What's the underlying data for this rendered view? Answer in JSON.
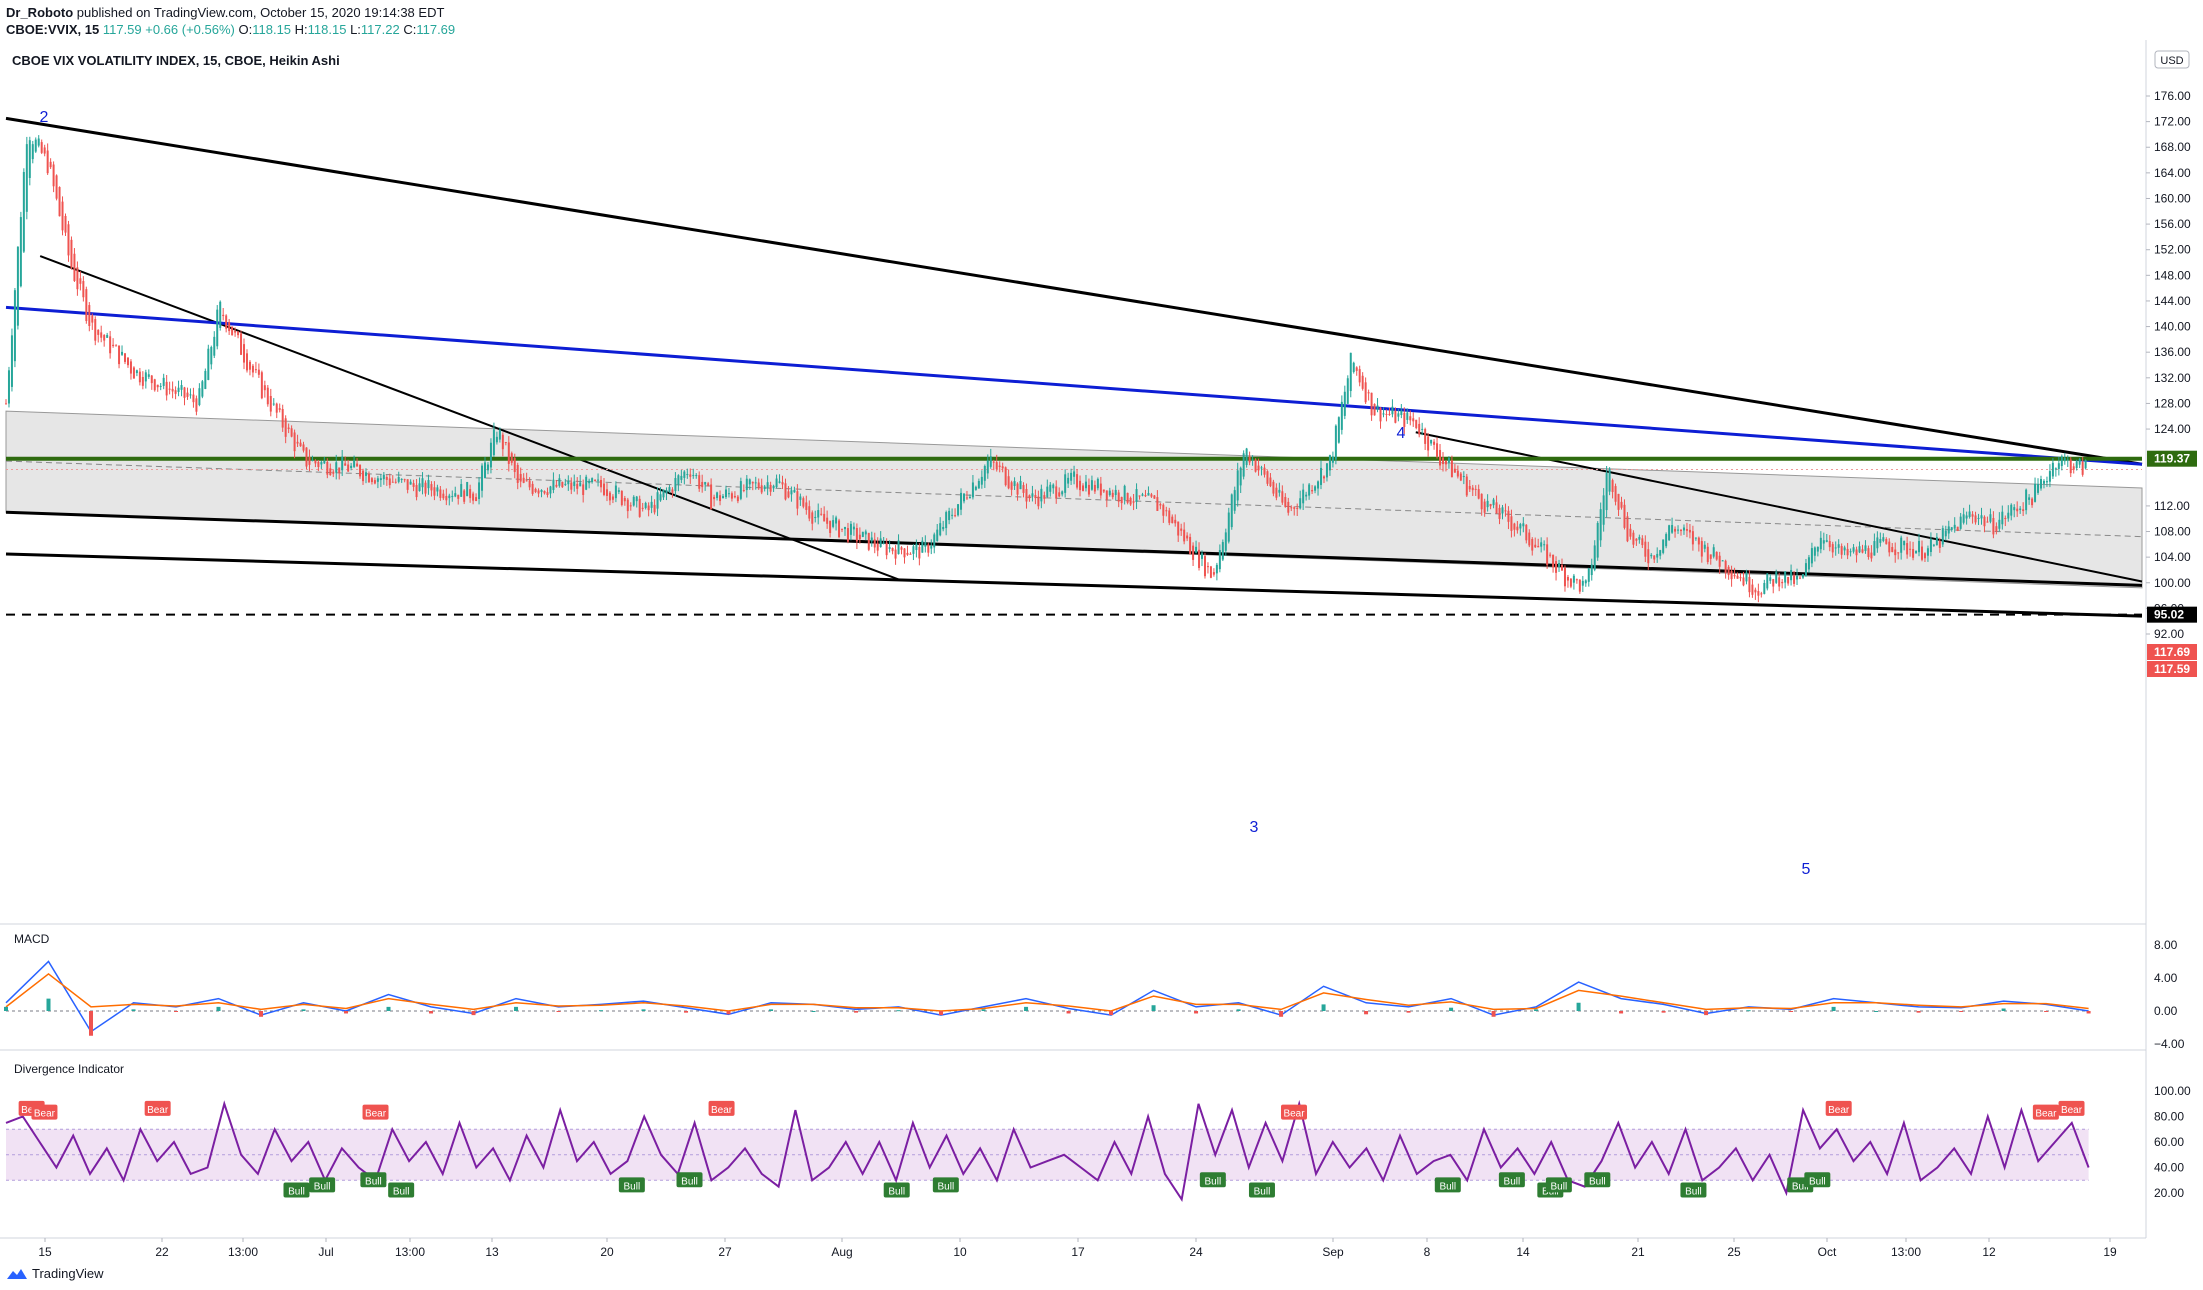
{
  "header": {
    "author": "Dr_Roboto",
    "published_text": "published on TradingView.com, October 15, 2020 19:14:38 EDT",
    "symbol": "CBOE:VVIX, 15",
    "last": "117.59",
    "change": "+0.66 (+0.56%)",
    "o_label": "O:",
    "o": "118.15",
    "h_label": "H:",
    "h": "118.15",
    "l_label": "L:",
    "l": "117.22",
    "c_label": "C:",
    "c": "117.69"
  },
  "footer": {
    "brand": "TradingView",
    "logo_icon": "tradingview-logo-icon"
  },
  "colors": {
    "bull": "#26a69a",
    "bear": "#ef5350",
    "trendline": "#000000",
    "blue_line": "#0d1ed4",
    "green_level": "#2e6b0f",
    "macd": "#2962ff",
    "signal": "#ff6d00",
    "rsi": "#7b1fa2",
    "band": "#e1bee7"
  },
  "chart_data": [
    {
      "type": "candlestick",
      "title": "CBOE VIX VOLATILITY INDEX, 15, CBOE, Heikin Ashi",
      "currency": "USD",
      "ylim": [
        90,
        178
      ],
      "y_ticks": [
        "176.00",
        "172.00",
        "168.00",
        "164.00",
        "160.00",
        "156.00",
        "152.00",
        "148.00",
        "144.00",
        "140.00",
        "136.00",
        "132.00",
        "128.00",
        "124.00",
        "112.00",
        "108.00",
        "104.00",
        "100.00",
        "96.00",
        "92.00"
      ],
      "x_ticks": [
        "15",
        "22",
        "13:00",
        "Jul",
        "13:00",
        "13",
        "20",
        "27",
        "Aug",
        "10",
        "17",
        "24",
        "Sep",
        "8",
        "14",
        "21",
        "25",
        "Oct",
        "13:00",
        "12",
        "19"
      ],
      "price_labels": [
        {
          "value": "119.37",
          "kind": "level"
        },
        {
          "value": "117.69",
          "kind": "bear"
        },
        {
          "value": "117.59",
          "kind": "bear"
        },
        {
          "value": "95.02",
          "kind": "dark"
        }
      ],
      "wave_labels": [
        "2",
        "3",
        "4",
        "5"
      ],
      "series_path": [
        [
          0.0,
          128
        ],
        [
          0.01,
          171
        ],
        [
          0.02,
          165
        ],
        [
          0.03,
          150
        ],
        [
          0.04,
          140
        ],
        [
          0.06,
          133
        ],
        [
          0.09,
          128
        ],
        [
          0.1,
          143
        ],
        [
          0.12,
          130
        ],
        [
          0.14,
          119
        ],
        [
          0.16,
          118
        ],
        [
          0.19,
          115
        ],
        [
          0.22,
          114
        ],
        [
          0.23,
          124
        ],
        [
          0.24,
          115
        ],
        [
          0.28,
          115
        ],
        [
          0.3,
          111
        ],
        [
          0.32,
          118
        ],
        [
          0.33,
          113
        ],
        [
          0.36,
          116
        ],
        [
          0.38,
          110
        ],
        [
          0.41,
          105.5
        ],
        [
          0.43,
          105
        ],
        [
          0.46,
          119
        ],
        [
          0.48,
          113
        ],
        [
          0.5,
          116
        ],
        [
          0.52,
          114
        ],
        [
          0.54,
          112
        ],
        [
          0.565,
          101
        ],
        [
          0.58,
          121
        ],
        [
          0.6,
          111
        ],
        [
          0.62,
          119
        ],
        [
          0.63,
          135
        ],
        [
          0.64,
          127
        ],
        [
          0.66,
          125
        ],
        [
          0.67,
          120
        ],
        [
          0.69,
          113
        ],
        [
          0.71,
          108
        ],
        [
          0.73,
          101
        ],
        [
          0.74,
          99
        ],
        [
          0.75,
          118
        ],
        [
          0.76,
          107
        ],
        [
          0.77,
          104
        ],
        [
          0.78,
          109
        ],
        [
          0.8,
          104
        ],
        [
          0.82,
          99
        ],
        [
          0.83,
          101
        ],
        [
          0.84,
          100
        ],
        [
          0.85,
          108
        ],
        [
          0.86,
          104
        ],
        [
          0.88,
          106
        ],
        [
          0.9,
          105
        ],
        [
          0.92,
          111
        ],
        [
          0.93,
          109
        ],
        [
          0.95,
          114
        ],
        [
          0.96,
          119.5
        ],
        [
          0.97,
          118
        ]
      ],
      "horizontal_lines": [
        119.37,
        95.02
      ]
    },
    {
      "type": "line",
      "title": "MACD",
      "y_ticks": [
        "8.00",
        "4.00",
        "0.00",
        "−4.00"
      ],
      "ylim": [
        -5,
        9
      ],
      "series": [
        {
          "name": "",
          "values": [
            1.0,
            6.0,
            -2.5,
            1.0,
            0.5,
            1.5,
            -0.5,
            1.0,
            0.0,
            2.0,
            0.5,
            -0.3,
            1.5,
            0.5,
            0.8,
            1.2,
            0.4,
            -0.4,
            1.0,
            0.8,
            0.2,
            0.5,
            -0.5,
            0.5,
            1.5,
            0.3,
            -0.5,
            2.5,
            0.5,
            1.0,
            -0.5,
            3.0,
            1.0,
            0.5,
            1.5,
            -0.5,
            0.5,
            3.5,
            1.5,
            0.8,
            -0.3,
            0.5,
            0.2,
            1.5,
            1.0,
            0.5,
            0.4,
            1.2,
            0.8,
            0.0
          ]
        },
        {
          "name": "",
          "values": [
            0.5,
            4.5,
            0.5,
            0.8,
            0.6,
            1.0,
            0.2,
            0.8,
            0.3,
            1.5,
            0.8,
            0.2,
            1.0,
            0.6,
            0.7,
            1.0,
            0.6,
            0.0,
            0.8,
            0.8,
            0.4,
            0.4,
            0.0,
            0.3,
            1.0,
            0.6,
            0.0,
            1.8,
            0.8,
            0.8,
            0.2,
            2.2,
            1.4,
            0.7,
            1.1,
            0.2,
            0.3,
            2.5,
            1.8,
            1.0,
            0.2,
            0.4,
            0.3,
            1.0,
            1.0,
            0.7,
            0.5,
            0.9,
            0.9,
            0.3
          ]
        }
      ]
    },
    {
      "type": "line",
      "title": "Divergence Indicator",
      "y_ticks": [
        "100.00",
        "80.00",
        "60.00",
        "40.00",
        "20.00"
      ],
      "ylim": [
        0,
        105
      ],
      "band": [
        30,
        70
      ],
      "series": [
        {
          "name": "",
          "values": [
            75,
            80,
            60,
            40,
            65,
            35,
            55,
            30,
            70,
            45,
            60,
            35,
            40,
            90,
            50,
            35,
            70,
            45,
            60,
            30,
            55,
            40,
            30,
            70,
            45,
            60,
            35,
            75,
            40,
            55,
            30,
            65,
            40,
            85,
            45,
            60,
            35,
            45,
            80,
            50,
            35,
            75,
            30,
            40,
            55,
            35,
            25,
            85,
            30,
            40,
            60,
            35,
            60,
            30,
            75,
            40,
            65,
            35,
            55,
            30,
            70,
            40,
            45,
            50,
            40,
            30,
            60,
            35,
            80,
            35,
            15,
            90,
            50,
            85,
            40,
            75,
            45,
            90,
            35,
            60,
            40,
            55,
            30,
            65,
            35,
            45,
            50,
            30,
            70,
            40,
            55,
            35,
            60,
            30,
            25,
            45,
            75,
            40,
            60,
            35,
            70,
            30,
            40,
            55,
            30,
            50,
            20,
            85,
            55,
            70,
            45,
            60,
            35,
            75,
            30,
            40,
            55,
            35,
            80,
            40,
            85,
            45,
            60,
            75,
            40
          ]
        }
      ],
      "signals": [
        {
          "label": "Bear",
          "x": 0.012,
          "kind": "bear"
        },
        {
          "label": "Bear",
          "x": 0.018,
          "kind": "bear"
        },
        {
          "label": "Bear",
          "x": 0.071,
          "kind": "bear"
        },
        {
          "label": "Bear",
          "x": 0.173,
          "kind": "bear"
        },
        {
          "label": "Bear",
          "x": 0.335,
          "kind": "bear"
        },
        {
          "label": "Bear",
          "x": 0.603,
          "kind": "bear"
        },
        {
          "label": "Bear",
          "x": 0.858,
          "kind": "bear"
        },
        {
          "label": "Bear",
          "x": 0.955,
          "kind": "bear"
        },
        {
          "label": "Bear",
          "x": 0.967,
          "kind": "bear"
        },
        {
          "label": "Bull",
          "x": 0.136,
          "kind": "bull"
        },
        {
          "label": "Bull",
          "x": 0.148,
          "kind": "bull"
        },
        {
          "label": "Bull",
          "x": 0.172,
          "kind": "bull"
        },
        {
          "label": "Bull",
          "x": 0.185,
          "kind": "bull"
        },
        {
          "label": "Bull",
          "x": 0.293,
          "kind": "bull"
        },
        {
          "label": "Bull",
          "x": 0.32,
          "kind": "bull"
        },
        {
          "label": "Bull",
          "x": 0.417,
          "kind": "bull"
        },
        {
          "label": "Bull",
          "x": 0.44,
          "kind": "bull"
        },
        {
          "label": "Bull",
          "x": 0.565,
          "kind": "bull"
        },
        {
          "label": "Bull",
          "x": 0.588,
          "kind": "bull"
        },
        {
          "label": "Bull",
          "x": 0.675,
          "kind": "bull"
        },
        {
          "label": "Bull",
          "x": 0.705,
          "kind": "bull"
        },
        {
          "label": "Bull",
          "x": 0.723,
          "kind": "bull"
        },
        {
          "label": "Bull",
          "x": 0.727,
          "kind": "bull"
        },
        {
          "label": "Bull",
          "x": 0.745,
          "kind": "bull"
        },
        {
          "label": "Bull",
          "x": 0.79,
          "kind": "bull"
        },
        {
          "label": "Bull",
          "x": 0.84,
          "kind": "bull"
        },
        {
          "label": "Bull",
          "x": 0.848,
          "kind": "bull"
        }
      ]
    }
  ]
}
